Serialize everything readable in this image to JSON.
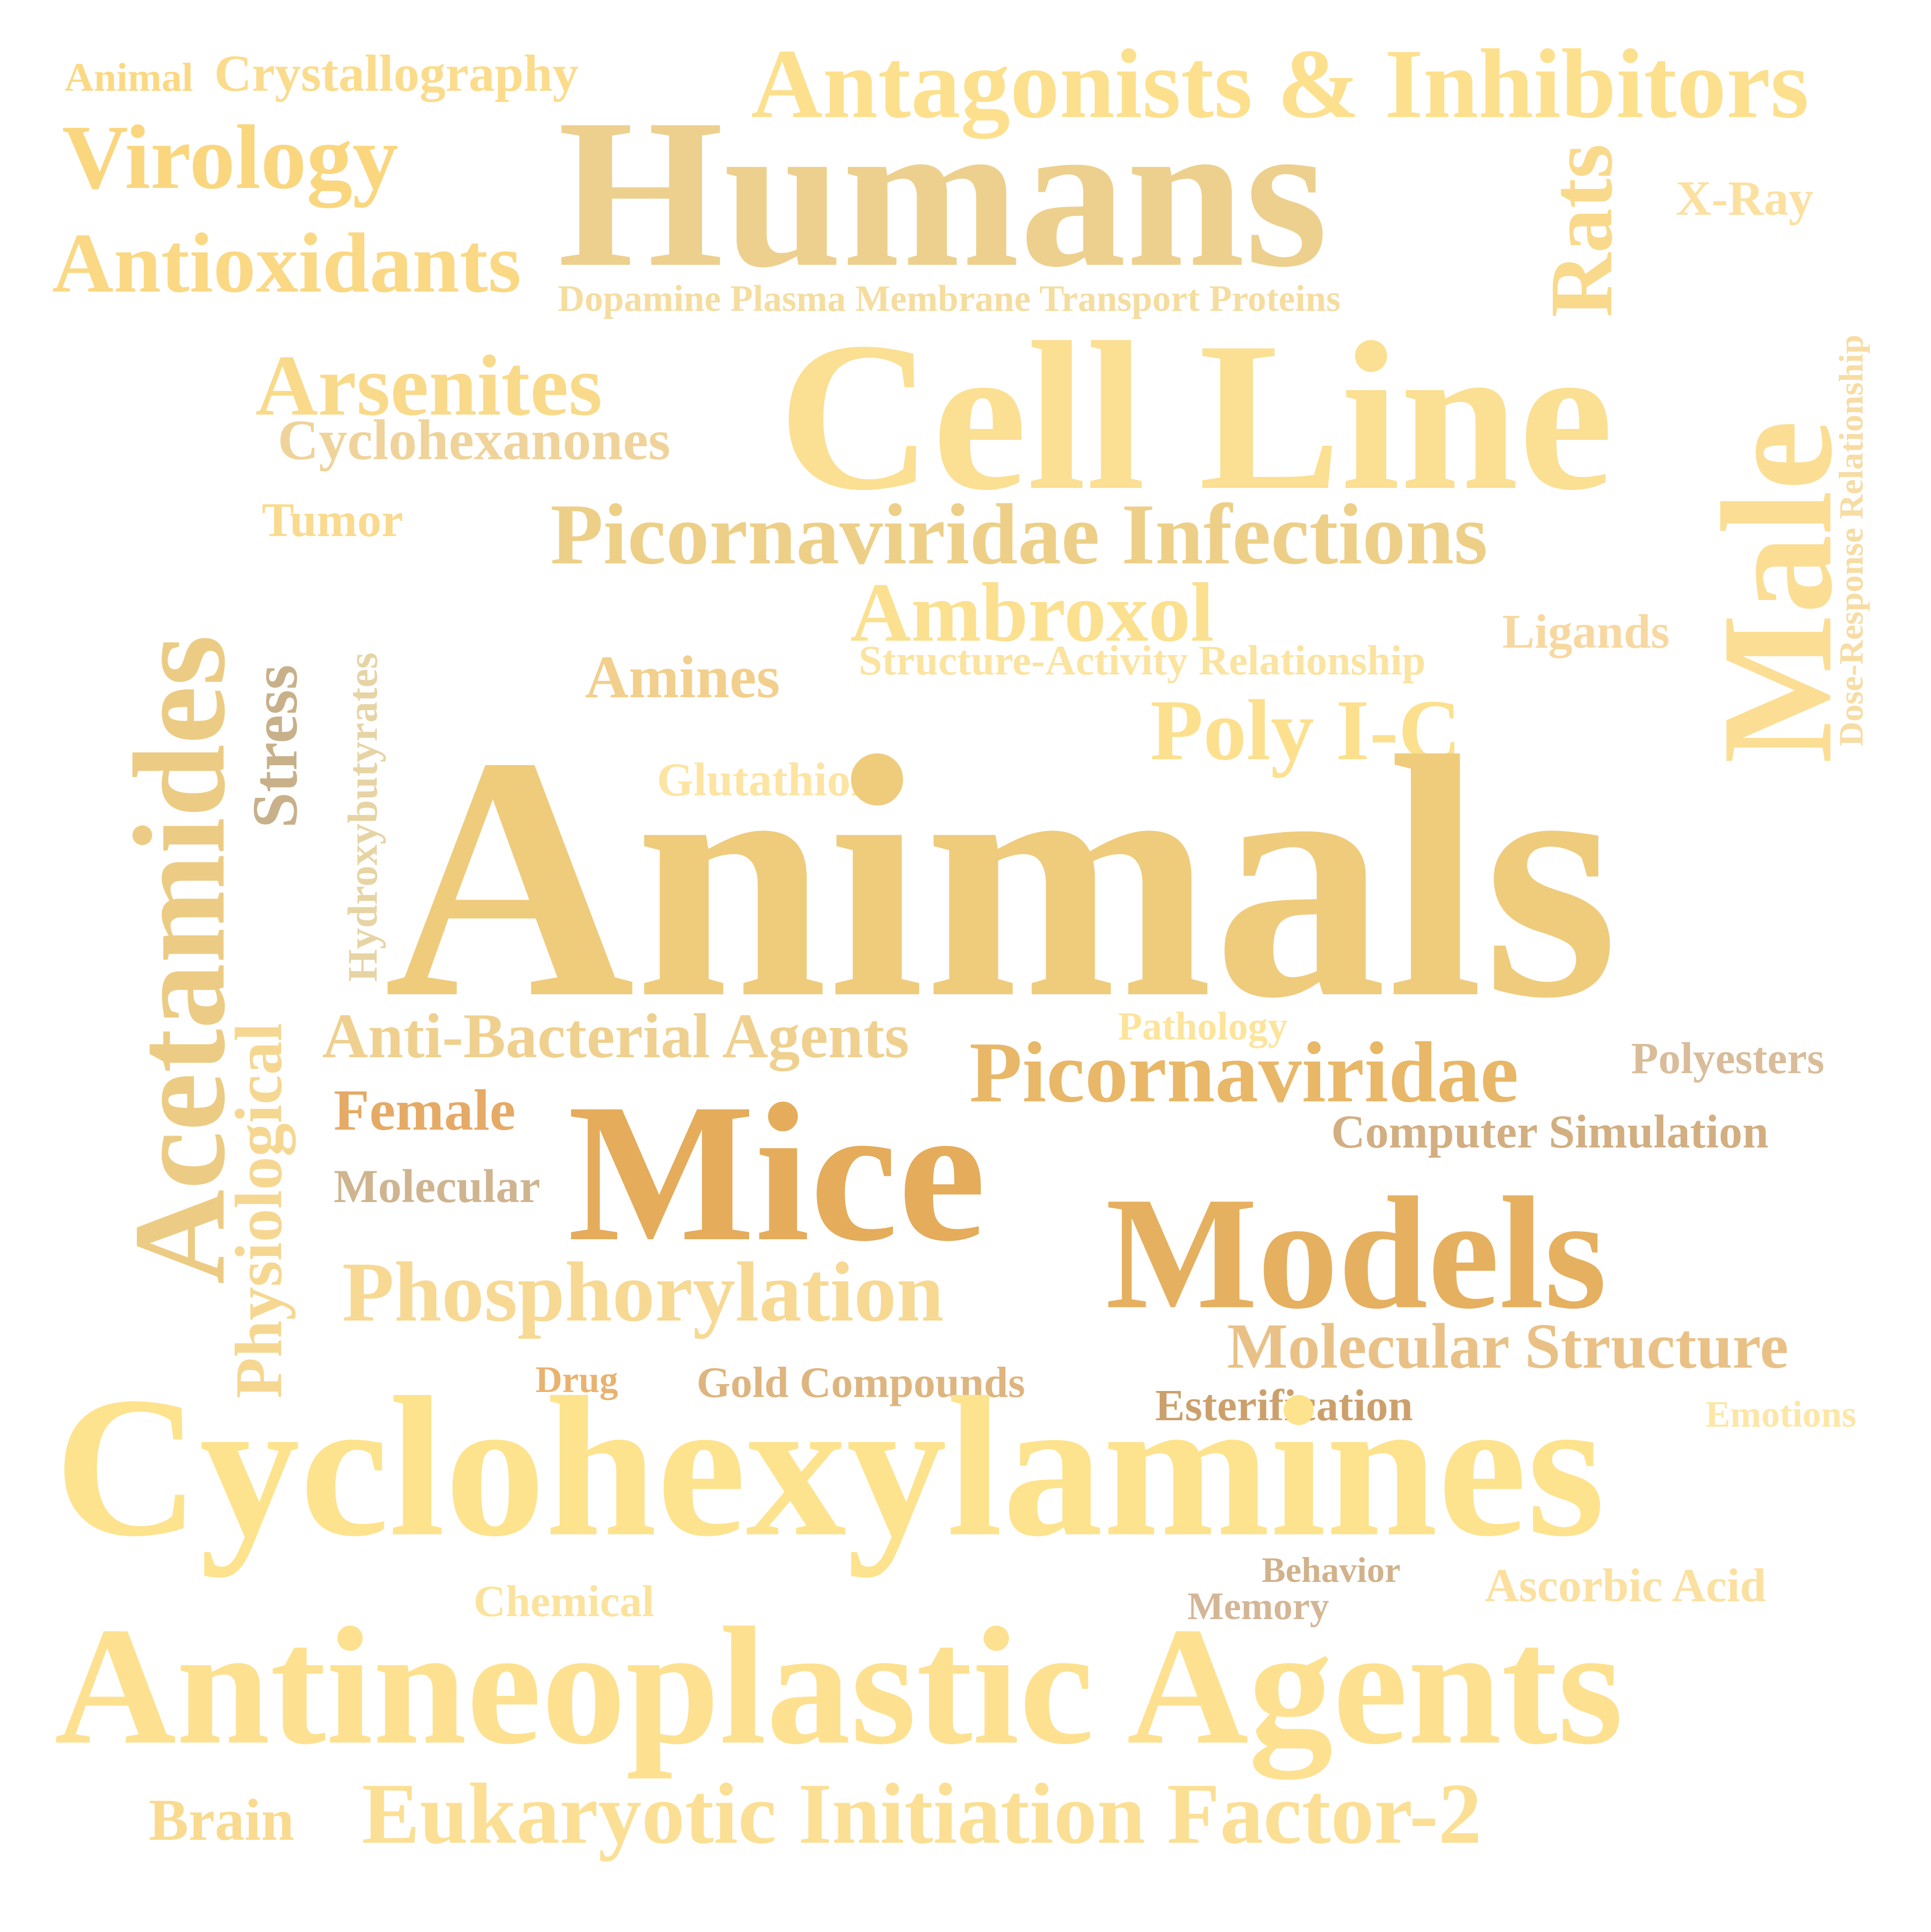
{
  "words": [
    {
      "text": "Animal",
      "color": "#FBD983"
    },
    {
      "text": "Crystallography",
      "color": "#FBDC8C"
    },
    {
      "text": "Antagonists & Inhibitors",
      "color": "#FDE08E"
    },
    {
      "text": "Virology",
      "color": "#FAD67F"
    },
    {
      "text": "Humans",
      "color": "#EDD08E"
    },
    {
      "text": "Rats",
      "color": "#F9D98C"
    },
    {
      "text": "X-Ray",
      "color": "#FCE0A0"
    },
    {
      "text": "Antioxidants",
      "color": "#FAD884"
    },
    {
      "text": "Dopamine Plasma Membrane Transport Proteins",
      "color": "#F5DDA0"
    },
    {
      "text": "Dose-Response Relationship",
      "color": "#F7DCA3"
    },
    {
      "text": "Male",
      "color": "#FBDE94"
    },
    {
      "text": "Acetamides",
      "color": "#ECCC84"
    },
    {
      "text": "Arsenites",
      "color": "#F9DA8A"
    },
    {
      "text": "Cell Line",
      "color": "#FBDF92"
    },
    {
      "text": "Cyclohexanones",
      "color": "#EFD39A"
    },
    {
      "text": "Tumor",
      "color": "#FADA8E"
    },
    {
      "text": "Picornaviridae Infections",
      "color": "#EDCF88"
    },
    {
      "text": "Stress",
      "color": "#C8B08A"
    },
    {
      "text": "Hydroxybutyrates",
      "color": "#E7D4A4"
    },
    {
      "text": "Ambroxol",
      "color": "#FBE08F"
    },
    {
      "text": "Structure-Activity Relationship",
      "color": "#FBE3A0"
    },
    {
      "text": "Ligands",
      "color": "#F7D8A1"
    },
    {
      "text": "Amines",
      "color": "#F2CF8C"
    },
    {
      "text": "Poly I-C",
      "color": "#FCE08E"
    },
    {
      "text": "Glutathione",
      "color": "#FDE4A2"
    },
    {
      "text": "Physiological",
      "color": "#F6D792"
    },
    {
      "text": "Animals",
      "color": "#EFCB7C"
    },
    {
      "text": "Anti-Bacterial Agents",
      "color": "#EFD08F"
    },
    {
      "text": "Pathology",
      "color": "#FDE49B"
    },
    {
      "text": "Picornaviridae",
      "color": "#E8B768"
    },
    {
      "text": "Polyesters",
      "color": "#D9BC99"
    },
    {
      "text": "Female",
      "color": "#E5AA66"
    },
    {
      "text": "Computer Simulation",
      "color": "#D2AE81"
    },
    {
      "text": "Mice",
      "color": "#E4AC5B"
    },
    {
      "text": "Molecular",
      "color": "#CFB490"
    },
    {
      "text": "Models",
      "color": "#E5B060"
    },
    {
      "text": "Phosphorylation",
      "color": "#F7D994"
    },
    {
      "text": "Molecular Structure",
      "color": "#E9C187"
    },
    {
      "text": "Drug",
      "color": "#E9B26F"
    },
    {
      "text": "Gold Compounds",
      "color": "#DEB57F"
    },
    {
      "text": "Esterification",
      "color": "#CCA06C"
    },
    {
      "text": "Emotions",
      "color": "#FDE6A6"
    },
    {
      "text": "Cyclohexylamines",
      "color": "#FDE38D"
    },
    {
      "text": "Behavior",
      "color": "#D1B28C"
    },
    {
      "text": "Chemical",
      "color": "#FCE39D"
    },
    {
      "text": "Ascorbic Acid",
      "color": "#FCE0A0"
    },
    {
      "text": "Memory",
      "color": "#D4B696"
    },
    {
      "text": "Antineoplastic Agents",
      "color": "#FDE190"
    },
    {
      "text": "Brain",
      "color": "#F9DA8F"
    },
    {
      "text": "Eukaryotic Initiation Factor-2",
      "color": "#FBDF94"
    }
  ]
}
